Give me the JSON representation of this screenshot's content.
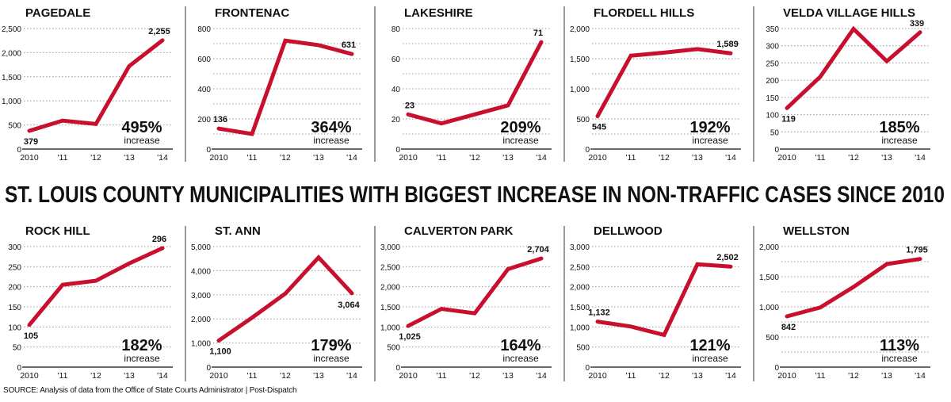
{
  "headline": "ST. LOUIS COUNTY MUNICIPALITIES WITH BIGGEST INCREASE IN NON-TRAFFIC CASES SINCE 2010",
  "source": "SOURCE: Analysis of data from the Office of State Courts Administrator  |  Post-Dispatch",
  "increase_word": "increase",
  "colors": {
    "line": "#c8102e",
    "text": "#111111",
    "grid": "#999999",
    "divider": "#9a9a9a"
  },
  "chart_data": [
    {
      "type": "line",
      "title": "PAGEDALE",
      "categories": [
        "2010",
        "'11",
        "'12",
        "'13",
        "'14"
      ],
      "values": [
        379,
        590,
        520,
        1720,
        2255
      ],
      "first_label": "379",
      "last_label": "2,255",
      "ylim": [
        0,
        2500
      ],
      "yticks": [
        0,
        500,
        1000,
        1500,
        2000,
        2500
      ],
      "ytick_labels": [
        "0",
        "500",
        "1,000",
        "1,500",
        "2,000",
        "2,500"
      ],
      "grid_step": 500,
      "callout": "495%"
    },
    {
      "type": "line",
      "title": "FRONTENAC",
      "categories": [
        "2010",
        "'11",
        "'12",
        "'13",
        "'14"
      ],
      "values": [
        136,
        100,
        720,
        690,
        631
      ],
      "first_label": "136",
      "last_label": "631",
      "ylim": [
        0,
        800
      ],
      "yticks": [
        0,
        200,
        400,
        600,
        800
      ],
      "ytick_labels": [
        "0",
        "200",
        "400",
        "600",
        "800"
      ],
      "grid_step": 100,
      "callout": "364%"
    },
    {
      "type": "line",
      "title": "LAKESHIRE",
      "categories": [
        "2010",
        "'11",
        "'12",
        "'13",
        "'14"
      ],
      "values": [
        23,
        17,
        23,
        29,
        71
      ],
      "first_label": "23",
      "last_label": "71",
      "ylim": [
        0,
        80
      ],
      "yticks": [
        0,
        20,
        40,
        60,
        80
      ],
      "ytick_labels": [
        "0",
        "20",
        "40",
        "60",
        "80"
      ],
      "grid_step": 10,
      "callout": "209%"
    },
    {
      "type": "line",
      "title": "FLORDELL HILLS",
      "categories": [
        "2010",
        "'11",
        "'12",
        "'13",
        "'14"
      ],
      "values": [
        545,
        1550,
        1600,
        1660,
        1589
      ],
      "first_label": "545",
      "last_label": "1,589",
      "ylim": [
        0,
        2000
      ],
      "yticks": [
        0,
        500,
        1000,
        1500,
        2000
      ],
      "ytick_labels": [
        "0",
        "500",
        "1,000",
        "1,500",
        "2,000"
      ],
      "grid_step": 250,
      "callout": "192%"
    },
    {
      "type": "line",
      "title": "VELDA VILLAGE HILLS",
      "categories": [
        "2010",
        "'11",
        "'12",
        "'13",
        "'14"
      ],
      "values": [
        119,
        210,
        349,
        255,
        339
      ],
      "first_label": "119",
      "last_label": "339",
      "ylim": [
        0,
        350
      ],
      "yticks": [
        0,
        50,
        100,
        150,
        200,
        250,
        300,
        350
      ],
      "ytick_labels": [
        "0",
        "50",
        "100",
        "150",
        "200",
        "250",
        "300",
        "350"
      ],
      "grid_step": 50,
      "callout": "185%"
    },
    {
      "type": "line",
      "title": "ROCK HILL",
      "categories": [
        "2010",
        "'11",
        "'12",
        "'13",
        "'14"
      ],
      "values": [
        105,
        205,
        215,
        258,
        296
      ],
      "first_label": "105",
      "last_label": "296",
      "ylim": [
        0,
        300
      ],
      "yticks": [
        0,
        50,
        100,
        150,
        200,
        250,
        300
      ],
      "ytick_labels": [
        "0",
        "50",
        "100",
        "150",
        "200",
        "250",
        "300"
      ],
      "grid_step": 50,
      "callout": "182%"
    },
    {
      "type": "line",
      "title": "ST. ANN",
      "categories": [
        "2010",
        "'11",
        "'12",
        "'13",
        "'14"
      ],
      "values": [
        1100,
        2050,
        3050,
        4550,
        3064
      ],
      "first_label": "1,100",
      "last_label": "3,064",
      "ylim": [
        0,
        5000
      ],
      "yticks": [
        0,
        1000,
        2000,
        3000,
        4000,
        5000
      ],
      "ytick_labels": [
        "0",
        "1,000",
        "2,000",
        "3,000",
        "4,000",
        "5,000"
      ],
      "grid_step": 1000,
      "callout": "179%"
    },
    {
      "type": "line",
      "title": "CALVERTON PARK",
      "categories": [
        "2010",
        "'11",
        "'12",
        "'13",
        "'14"
      ],
      "values": [
        1025,
        1450,
        1340,
        2440,
        2704
      ],
      "first_label": "1,025",
      "last_label": "2,704",
      "ylim": [
        0,
        3000
      ],
      "yticks": [
        0,
        500,
        1000,
        1500,
        2000,
        2500,
        3000
      ],
      "ytick_labels": [
        "0",
        "500",
        "1,000",
        "1,500",
        "2,000",
        "2,500",
        "3,000"
      ],
      "grid_step": 500,
      "callout": "164%"
    },
    {
      "type": "line",
      "title": "DELLWOOD",
      "categories": [
        "2010",
        "'11",
        "'12",
        "'13",
        "'14"
      ],
      "values": [
        1132,
        1010,
        800,
        2560,
        2502
      ],
      "first_label": "1,132",
      "last_label": "2,502",
      "ylim": [
        0,
        3000
      ],
      "yticks": [
        0,
        500,
        1000,
        1500,
        2000,
        2500,
        3000
      ],
      "ytick_labels": [
        "0",
        "500",
        "1,000",
        "1,500",
        "2,000",
        "2,500",
        "3,000"
      ],
      "grid_step": 500,
      "callout": "121%"
    },
    {
      "type": "line",
      "title": "WELLSTON",
      "categories": [
        "2010",
        "'11",
        "'12",
        "'13",
        "'14"
      ],
      "values": [
        842,
        990,
        1330,
        1710,
        1795
      ],
      "first_label": "842",
      "last_label": "1,795",
      "ylim": [
        0,
        2000
      ],
      "yticks": [
        0,
        500,
        1000,
        1500,
        2000
      ],
      "ytick_labels": [
        "0",
        "500",
        "1,000",
        "1,500",
        "2,000"
      ],
      "grid_step": 250,
      "callout": "113%"
    }
  ]
}
